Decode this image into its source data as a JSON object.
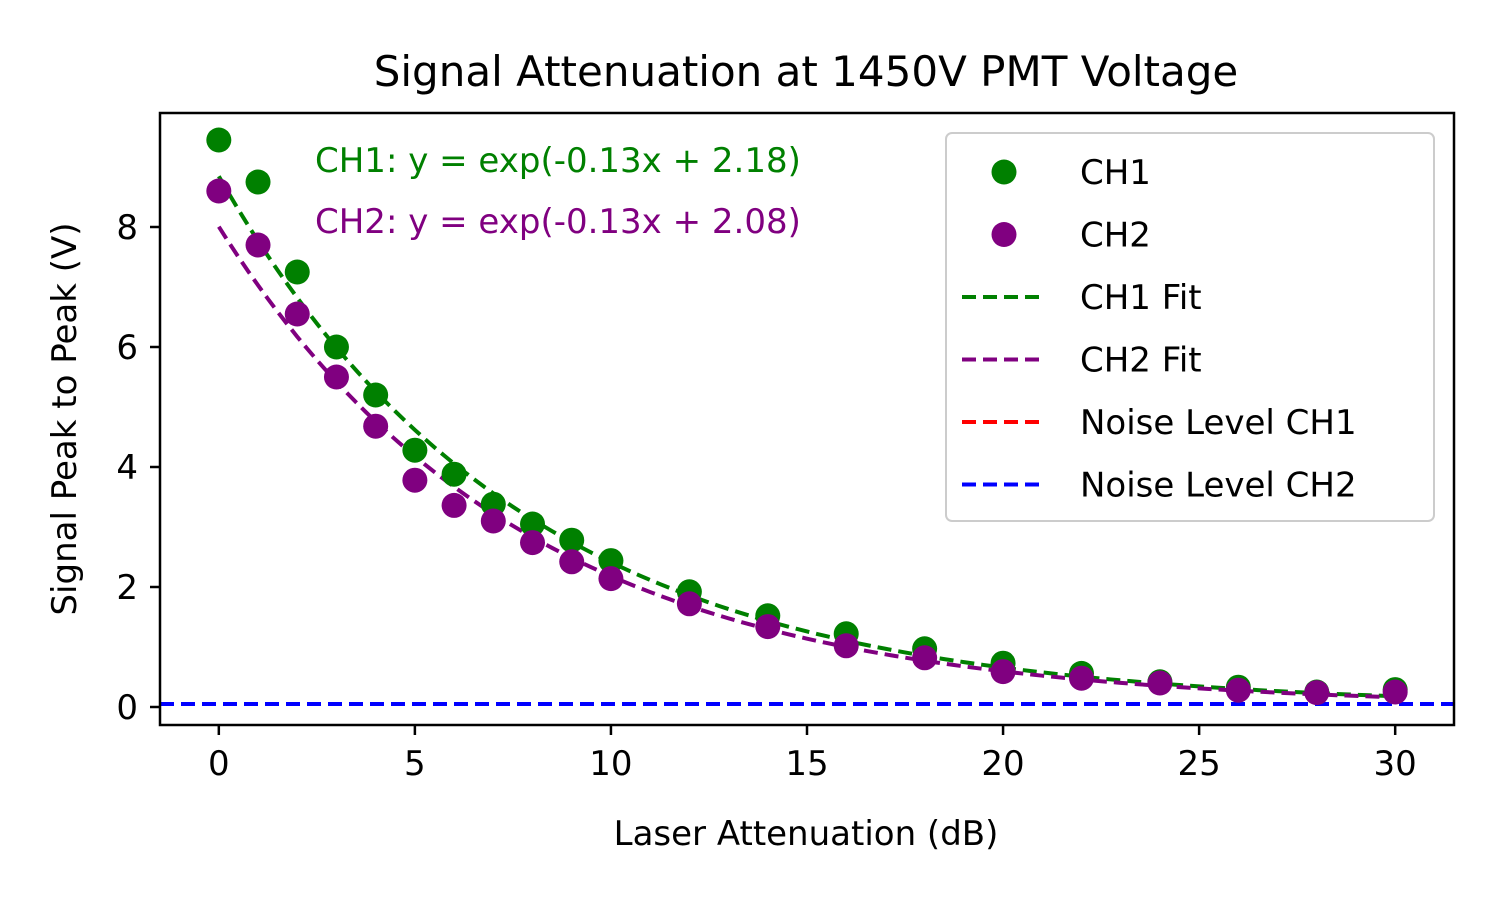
{
  "chart_data": {
    "type": "scatter",
    "title": "Signal Attenuation at 1450V PMT Voltage",
    "xlabel": "Laser Attenuation (dB)",
    "ylabel": "Signal Peak to Peak (V)",
    "xlim": [
      -1.5,
      31.5
    ],
    "ylim": [
      -0.3,
      9.9
    ],
    "xticks": [
      0,
      5,
      10,
      15,
      20,
      25,
      30
    ],
    "yticks": [
      0,
      2,
      4,
      6,
      8
    ],
    "grid": false,
    "legend_position": "top-right",
    "series": [
      {
        "name": "CH1",
        "kind": "scatter",
        "color": "#008000",
        "x": [
          0,
          1,
          2,
          3,
          4,
          5,
          6,
          7,
          8,
          9,
          10,
          12,
          14,
          16,
          18,
          20,
          22,
          24,
          26,
          28,
          30
        ],
        "y": [
          9.45,
          8.75,
          7.25,
          6.0,
          5.2,
          4.28,
          3.88,
          3.38,
          3.05,
          2.78,
          2.44,
          1.92,
          1.52,
          1.22,
          0.97,
          0.73,
          0.56,
          0.42,
          0.33,
          0.25,
          0.29
        ]
      },
      {
        "name": "CH2",
        "kind": "scatter",
        "color": "#800080",
        "x": [
          0,
          1,
          2,
          3,
          4,
          5,
          6,
          7,
          8,
          9,
          10,
          12,
          14,
          16,
          18,
          20,
          22,
          24,
          26,
          28,
          30
        ],
        "y": [
          8.6,
          7.7,
          6.55,
          5.5,
          4.68,
          3.78,
          3.36,
          3.1,
          2.74,
          2.42,
          2.14,
          1.72,
          1.34,
          1.02,
          0.82,
          0.59,
          0.48,
          0.4,
          0.28,
          0.24,
          0.25
        ]
      },
      {
        "name": "CH1 Fit",
        "kind": "fit",
        "color": "#008000",
        "slope": -0.13,
        "intercept": 2.18,
        "x_range": [
          0,
          30
        ]
      },
      {
        "name": "CH2 Fit",
        "kind": "fit",
        "color": "#800080",
        "slope": -0.13,
        "intercept": 2.08,
        "x_range": [
          0,
          30
        ]
      },
      {
        "name": "Noise Level CH1",
        "kind": "hline",
        "color": "#ff0000",
        "y": 0.05
      },
      {
        "name": "Noise Level CH2",
        "kind": "hline",
        "color": "#0000ff",
        "y": 0.05
      }
    ],
    "annotations": [
      {
        "text": "CH1: y = exp(-0.13x + 2.18)",
        "color": "#008000"
      },
      {
        "text": "CH2: y = exp(-0.13x + 2.08)",
        "color": "#800080"
      }
    ]
  }
}
